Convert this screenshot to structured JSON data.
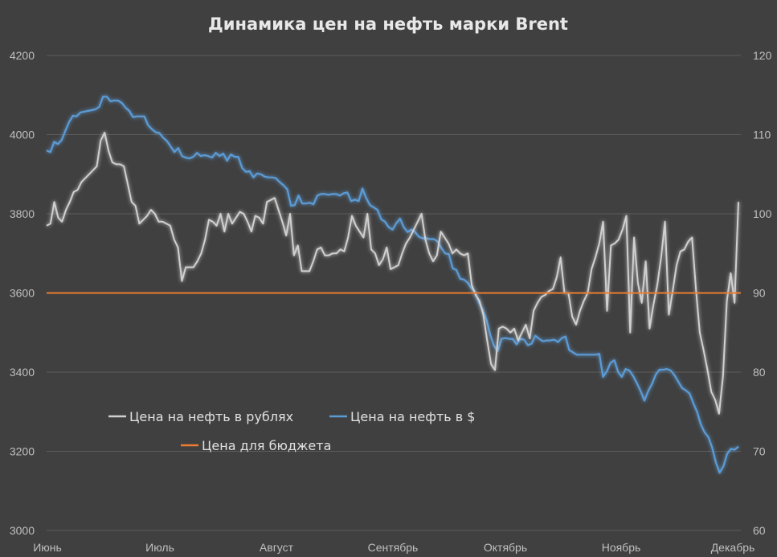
{
  "chart_data": {
    "type": "line",
    "title": "Динамика цен на нефть марки Brent",
    "x_labels": [
      "Июнь",
      "Июль",
      "Август",
      "Сентябрь",
      "Октябрь",
      "Ноябрь",
      "Декабрь"
    ],
    "y_left": {
      "min": 3000,
      "max": 4200,
      "ticks": [
        3000,
        3200,
        3400,
        3600,
        3800,
        4000,
        4200
      ]
    },
    "y_right": {
      "min": 60,
      "max": 120,
      "ticks": [
        60,
        70,
        80,
        90,
        100,
        110,
        120
      ]
    },
    "grid": true,
    "legend_position": "lower-left",
    "colors": {
      "background": "#404040",
      "rub": "#d0d0d0",
      "usd": "#5b9bd5",
      "budget": "#ed7d31"
    },
    "series": [
      {
        "name": "Цена на нефть в рублях",
        "axis": "left",
        "values": [
          3770,
          3775,
          3830,
          3790,
          3780,
          3810,
          3830,
          3855,
          3860,
          3880,
          3890,
          3900,
          3910,
          3920,
          3985,
          4005,
          3960,
          3930,
          3925,
          3925,
          3920,
          3875,
          3830,
          3820,
          3775,
          3785,
          3795,
          3810,
          3800,
          3780,
          3780,
          3775,
          3770,
          3735,
          3715,
          3630,
          3665,
          3665,
          3665,
          3680,
          3700,
          3735,
          3785,
          3780,
          3770,
          3800,
          3755,
          3800,
          3775,
          3790,
          3805,
          3800,
          3780,
          3755,
          3795,
          3790,
          3775,
          3830,
          3835,
          3840,
          3810,
          3780,
          3745,
          3800,
          3695,
          3720,
          3655,
          3655,
          3655,
          3680,
          3710,
          3715,
          3695,
          3695,
          3700,
          3700,
          3710,
          3705,
          3740,
          3795,
          3770,
          3755,
          3740,
          3800,
          3710,
          3700,
          3670,
          3685,
          3715,
          3660,
          3665,
          3670,
          3700,
          3725,
          3740,
          3760,
          3780,
          3800,
          3735,
          3700,
          3680,
          3695,
          3755,
          3740,
          3725,
          3700,
          3710,
          3700,
          3695,
          3700,
          3620,
          3595,
          3580,
          3545,
          3480,
          3420,
          3405,
          3510,
          3515,
          3510,
          3500,
          3510,
          3480,
          3500,
          3520,
          3485,
          3555,
          3575,
          3590,
          3595,
          3605,
          3610,
          3640,
          3690,
          3600,
          3600,
          3540,
          3520,
          3555,
          3580,
          3600,
          3660,
          3690,
          3725,
          3780,
          3555,
          3720,
          3725,
          3735,
          3760,
          3795,
          3500,
          3740,
          3625,
          3575,
          3680,
          3510,
          3570,
          3620,
          3690,
          3780,
          3545,
          3605,
          3670,
          3705,
          3710,
          3730,
          3740,
          3610,
          3500,
          3455,
          3405,
          3350,
          3330,
          3295,
          3390,
          3580,
          3650,
          3575,
          3830
        ]
      },
      {
        "name": "Цена на нефть в $",
        "axis": "right",
        "values": [
          108,
          107.8,
          109.1,
          108.8,
          109.3,
          110.5,
          111.6,
          112.4,
          112.3,
          112.8,
          112.9,
          113,
          113.1,
          113.2,
          113.5,
          114.8,
          114.8,
          114.2,
          114.3,
          114.3,
          114,
          113.4,
          113,
          112.2,
          112.3,
          112.3,
          112.3,
          111.2,
          110.7,
          110.3,
          110.2,
          109.6,
          109.2,
          108.5,
          107.8,
          108.3,
          107.3,
          107.1,
          107,
          107.2,
          107.7,
          107.3,
          107.4,
          107.3,
          107.1,
          107.7,
          107.3,
          107.6,
          106.7,
          107.5,
          107.2,
          107.2,
          105.8,
          105.3,
          105.4,
          104.6,
          105.1,
          105,
          104.7,
          104.6,
          104.6,
          104.5,
          104,
          103.6,
          103.1,
          101,
          101.1,
          102.3,
          101.3,
          101.3,
          101.4,
          101.2,
          102.3,
          102.5,
          102.5,
          102.4,
          102.5,
          102.5,
          102.3,
          102.6,
          102.7,
          101.6,
          101.8,
          101.6,
          103.2,
          102,
          101.1,
          100.8,
          100.5,
          99.3,
          99,
          98.3,
          98,
          98.8,
          99.4,
          98.3,
          97.7,
          98,
          97.7,
          97.1,
          96.9,
          96.9,
          96.8,
          96.8,
          96.5,
          95.7,
          95,
          94.9,
          93.1,
          92.9,
          91.8,
          91.7,
          91.3,
          90.6,
          90.1,
          88.8,
          87.9,
          86.6,
          84.7,
          83.3,
          82.7,
          84.2,
          84.3,
          84.2,
          84.2,
          83.5,
          84.2,
          84.1,
          83.4,
          83.6,
          84.6,
          84.2,
          83.9,
          84,
          84,
          84.1,
          83.8,
          84.3,
          84.5,
          82.8,
          82.5,
          82.2,
          82.2,
          82.2,
          82.2,
          82.2,
          82.2,
          82.3,
          79.4,
          80.1,
          81.2,
          81.5,
          80,
          79.4,
          80.4,
          80.2,
          79.5,
          78.6,
          77.6,
          76.4,
          77.6,
          78.5,
          79.7,
          80.3,
          80.3,
          80.4,
          80.2,
          79.6,
          78.8,
          78,
          77.7,
          77.3,
          76.1,
          75,
          73.4,
          72.4,
          71.8,
          70.5,
          68.6,
          67.3,
          68.1,
          69.7,
          70.3,
          70.2,
          70.6
        ]
      },
      {
        "name": "Цена для бюджета",
        "axis": "right",
        "values": [
          90,
          90
        ]
      }
    ]
  }
}
